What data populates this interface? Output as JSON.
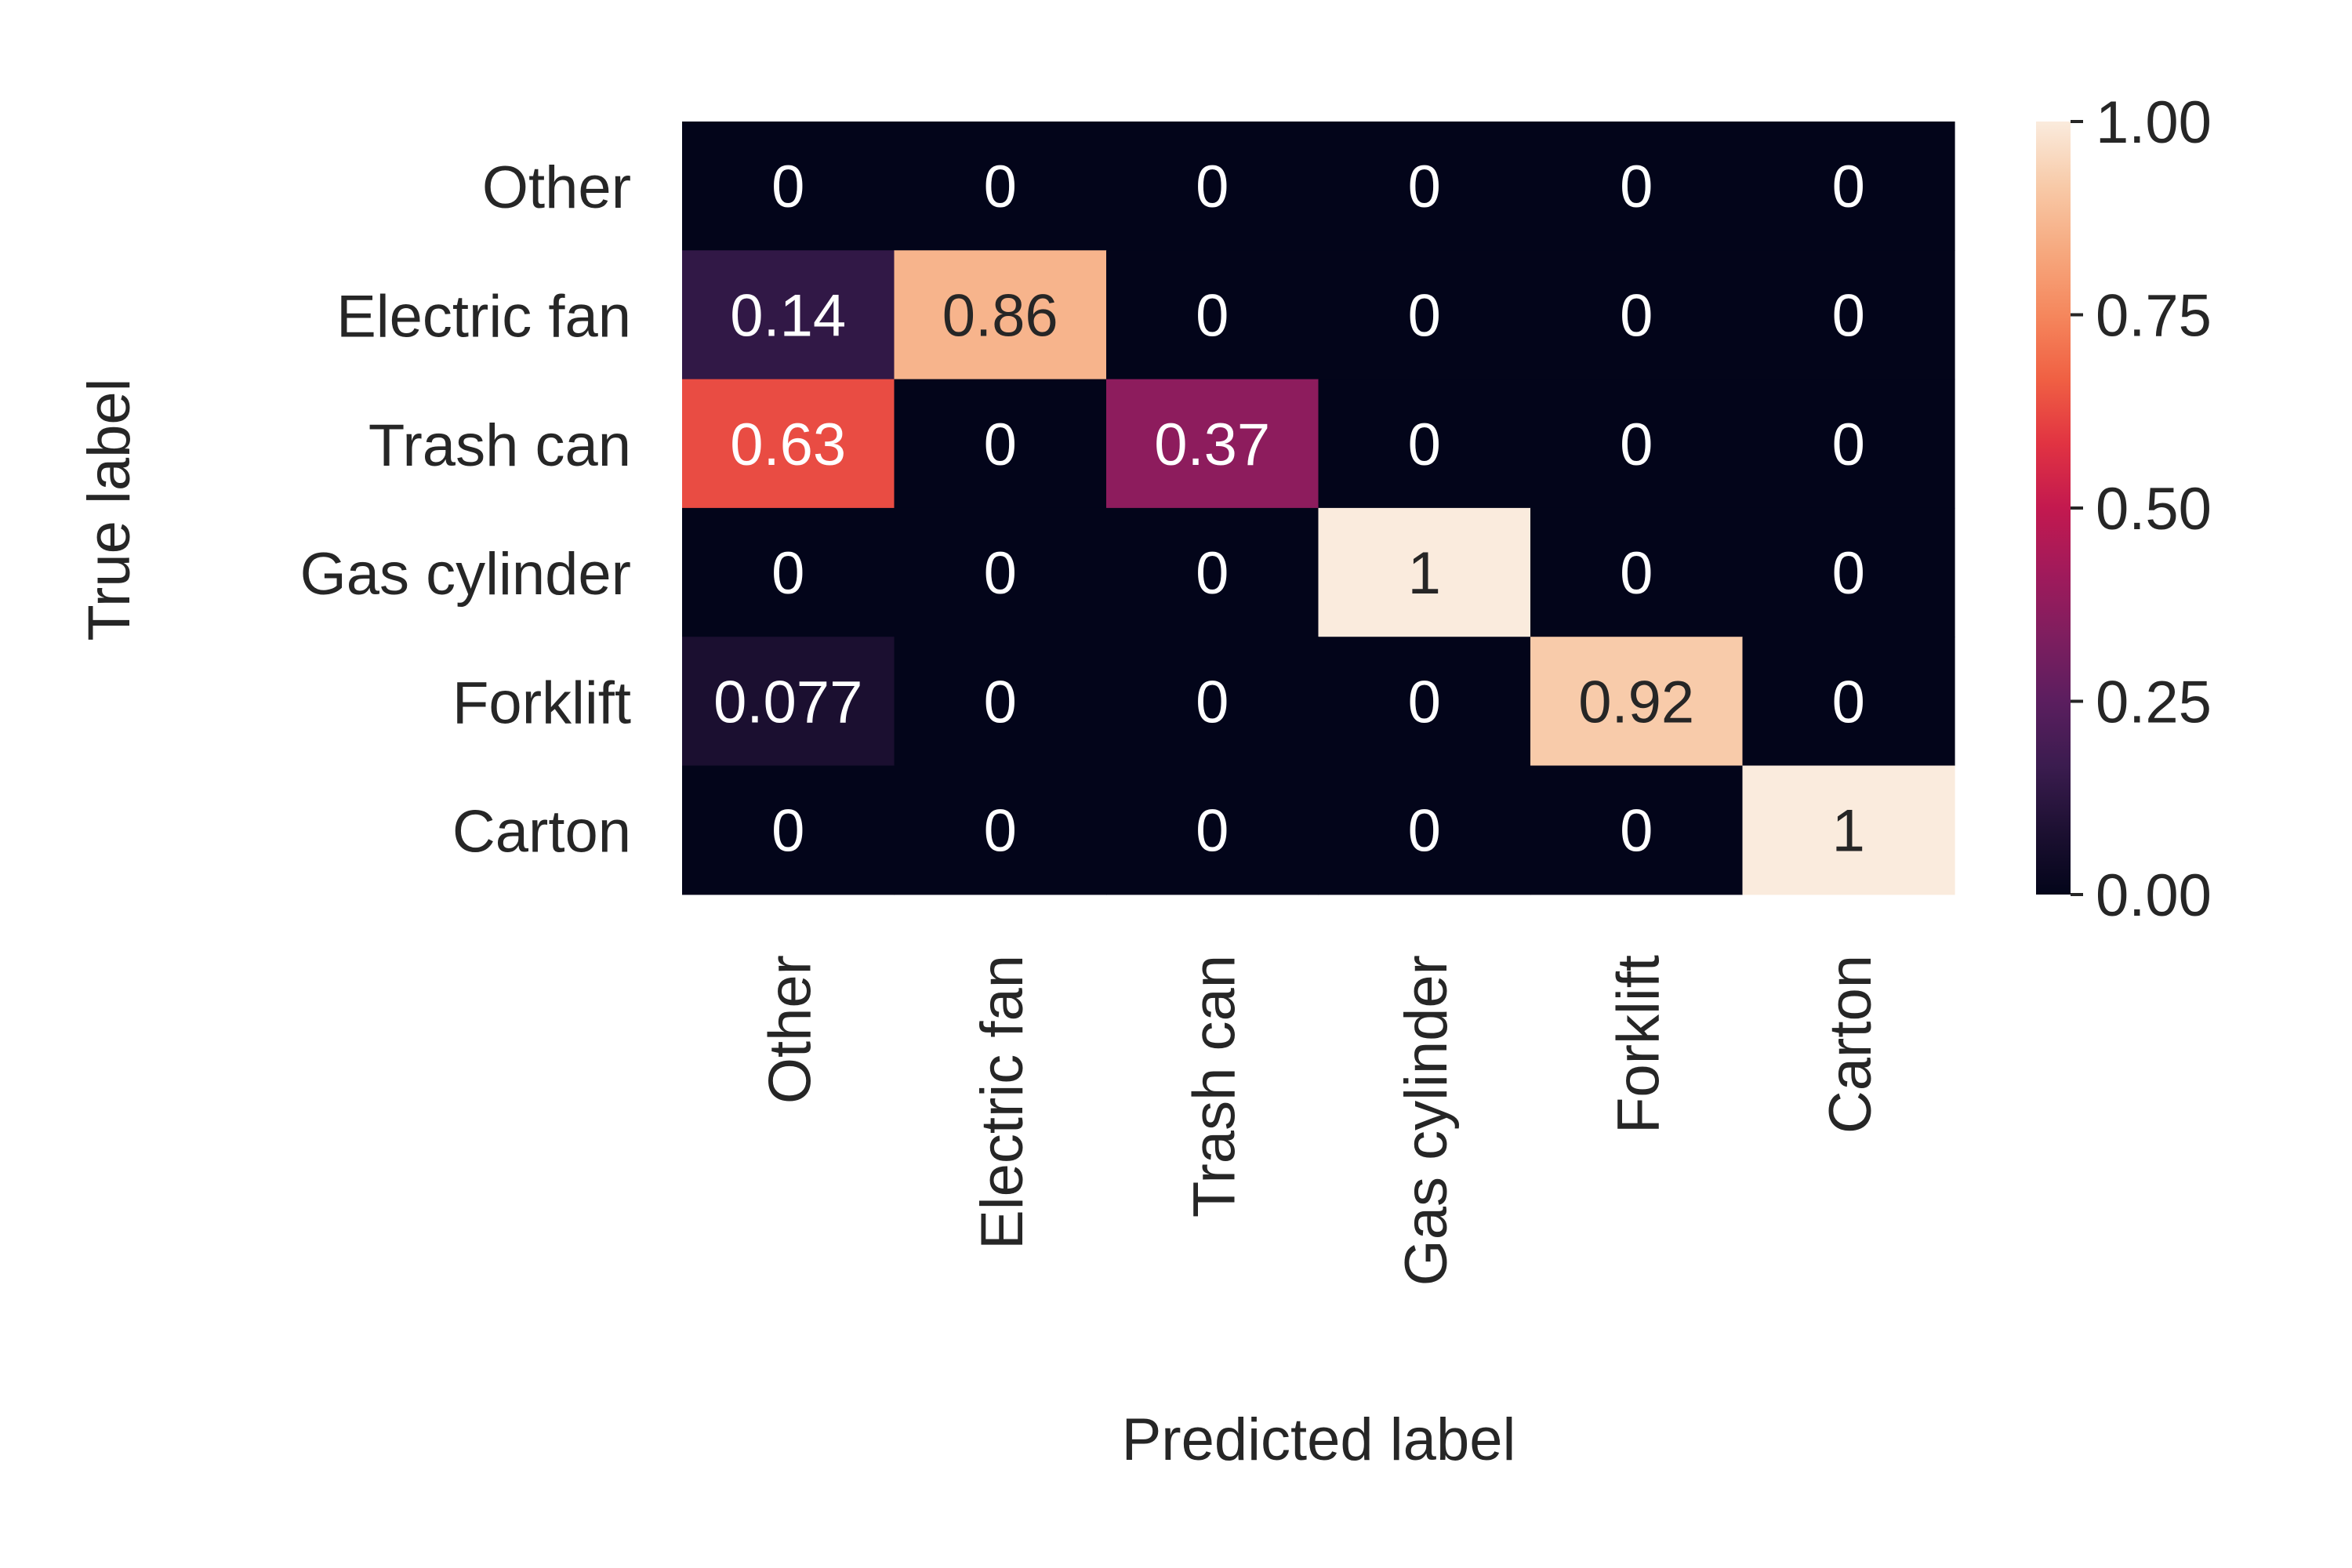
{
  "chart_data": {
    "type": "heatmap",
    "x_categories": [
      "Other",
      "Electric fan",
      "Trash can",
      "Gas cylinder",
      "Forklift",
      "Carton"
    ],
    "y_categories": [
      "Other",
      "Electric fan",
      "Trash can",
      "Gas cylinder",
      "Forklift",
      "Carton"
    ],
    "values": [
      [
        0,
        0,
        0,
        0,
        0,
        0
      ],
      [
        0.14,
        0.86,
        0,
        0,
        0,
        0
      ],
      [
        0.63,
        0,
        0.37,
        0,
        0,
        0
      ],
      [
        0,
        0,
        0,
        1,
        0,
        0
      ],
      [
        0.077,
        0,
        0,
        0,
        0.92,
        0
      ],
      [
        0,
        0,
        0,
        0,
        0,
        1
      ]
    ],
    "cell_labels": [
      [
        "0",
        "0",
        "0",
        "0",
        "0",
        "0"
      ],
      [
        "0.14",
        "0.86",
        "0",
        "0",
        "0",
        "0"
      ],
      [
        "0.63",
        "0",
        "0.37",
        "0",
        "0",
        "0"
      ],
      [
        "0",
        "0",
        "0",
        "1",
        "0",
        "0"
      ],
      [
        "0.077",
        "0",
        "0",
        "0",
        "0.92",
        "0"
      ],
      [
        "0",
        "0",
        "0",
        "0",
        "0",
        "1"
      ]
    ],
    "xlabel": "Predicted label",
    "ylabel": "True label",
    "colorbar": {
      "range": [
        0,
        1
      ],
      "ticks": [
        0,
        0.25,
        0.5,
        0.75,
        1.0
      ],
      "tick_labels": [
        "0.00",
        "0.25",
        "0.50",
        "0.75",
        "1.00"
      ],
      "colormap": "rocket",
      "stops": [
        "#03051a",
        "#1d1032",
        "#3b1c4f",
        "#5b1e5f",
        "#7e1e5f",
        "#a11a5b",
        "#c3194f",
        "#e13342",
        "#f06043",
        "#f5875d",
        "#f6a97f",
        "#f8caa8",
        "#faebdd"
      ]
    },
    "grid": false
  }
}
